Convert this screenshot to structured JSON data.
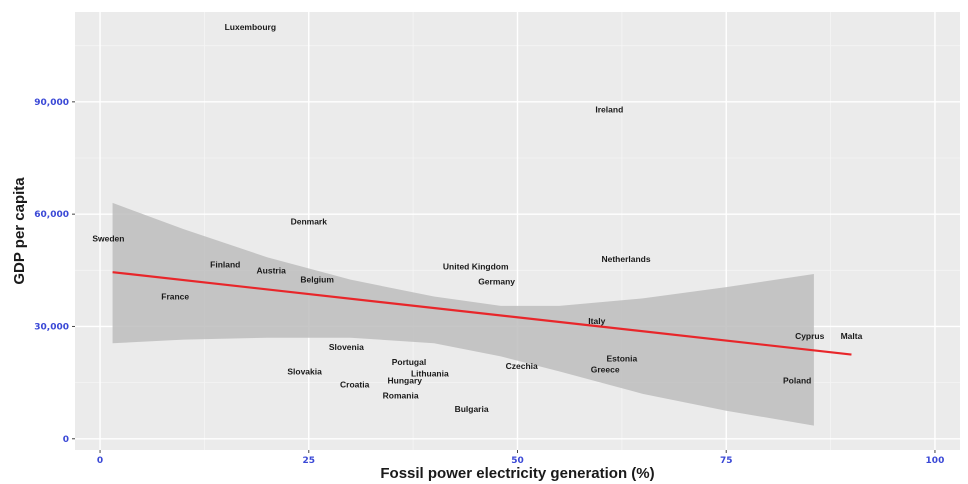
{
  "chart_data": {
    "type": "scatter",
    "xlabel": "Fossil power electricity generation (%)",
    "ylabel": "GDP per capita",
    "xlim": [
      -3,
      103
    ],
    "ylim": [
      -3000,
      114000
    ],
    "xticks": [
      0,
      25,
      50,
      75,
      100
    ],
    "xtick_labels": [
      "0",
      "25",
      "50",
      "75",
      "100"
    ],
    "yticks": [
      0,
      30000,
      60000,
      90000
    ],
    "ytick_labels": [
      "0",
      "30,000",
      "60,000",
      "90,000"
    ],
    "grid": true,
    "legend": "none",
    "colors": {
      "panel": "#ebebeb",
      "grid_major": "#ffffff",
      "grid_minor": "#f5f5f5",
      "tick_text": "#3a48d6",
      "label_text": "#1a1a1a",
      "band": "#bdbdbd",
      "fit_line": "#e8262a"
    },
    "points": [
      {
        "label": "Luxembourg",
        "x": 18,
        "y": 110000
      },
      {
        "label": "Ireland",
        "x": 61,
        "y": 88000
      },
      {
        "label": "Denmark",
        "x": 25,
        "y": 58000
      },
      {
        "label": "Sweden",
        "x": 1,
        "y": 53500
      },
      {
        "label": "Finland",
        "x": 15,
        "y": 46500
      },
      {
        "label": "Austria",
        "x": 20.5,
        "y": 45000
      },
      {
        "label": "Belgium",
        "x": 26,
        "y": 42500
      },
      {
        "label": "France",
        "x": 9,
        "y": 38000
      },
      {
        "label": "United Kingdom",
        "x": 45,
        "y": 46000
      },
      {
        "label": "Germany",
        "x": 47.5,
        "y": 42000
      },
      {
        "label": "Netherlands",
        "x": 63,
        "y": 48000
      },
      {
        "label": "Italy",
        "x": 59.5,
        "y": 31500
      },
      {
        "label": "Cyprus",
        "x": 85,
        "y": 27500
      },
      {
        "label": "Malta",
        "x": 90,
        "y": 27500
      },
      {
        "label": "Slovenia",
        "x": 29.5,
        "y": 24500
      },
      {
        "label": "Portugal",
        "x": 37,
        "y": 20500
      },
      {
        "label": "Lithuania",
        "x": 39.5,
        "y": 17500
      },
      {
        "label": "Slovakia",
        "x": 24.5,
        "y": 18000
      },
      {
        "label": "Czechia",
        "x": 50.5,
        "y": 19500
      },
      {
        "label": "Estonia",
        "x": 62.5,
        "y": 21500
      },
      {
        "label": "Greece",
        "x": 60.5,
        "y": 18500
      },
      {
        "label": "Hungary",
        "x": 36.5,
        "y": 15500
      },
      {
        "label": "Croatia",
        "x": 30.5,
        "y": 14500
      },
      {
        "label": "Romania",
        "x": 36,
        "y": 11500
      },
      {
        "label": "Bulgaria",
        "x": 44.5,
        "y": 8000
      },
      {
        "label": "Poland",
        "x": 83.5,
        "y": 15500
      }
    ],
    "fit": {
      "x": [
        1.5,
        90
      ],
      "y": [
        44500,
        22500
      ]
    },
    "confidence_band": {
      "x": [
        1.5,
        10,
        20,
        30,
        40,
        48,
        55,
        65,
        75,
        85.5
      ],
      "upper": [
        63000,
        56000,
        48500,
        42500,
        38000,
        35500,
        35500,
        37500,
        40500,
        44000
      ],
      "lower": [
        25500,
        26500,
        27000,
        27000,
        25500,
        22000,
        18000,
        12000,
        7500,
        3500
      ]
    }
  }
}
